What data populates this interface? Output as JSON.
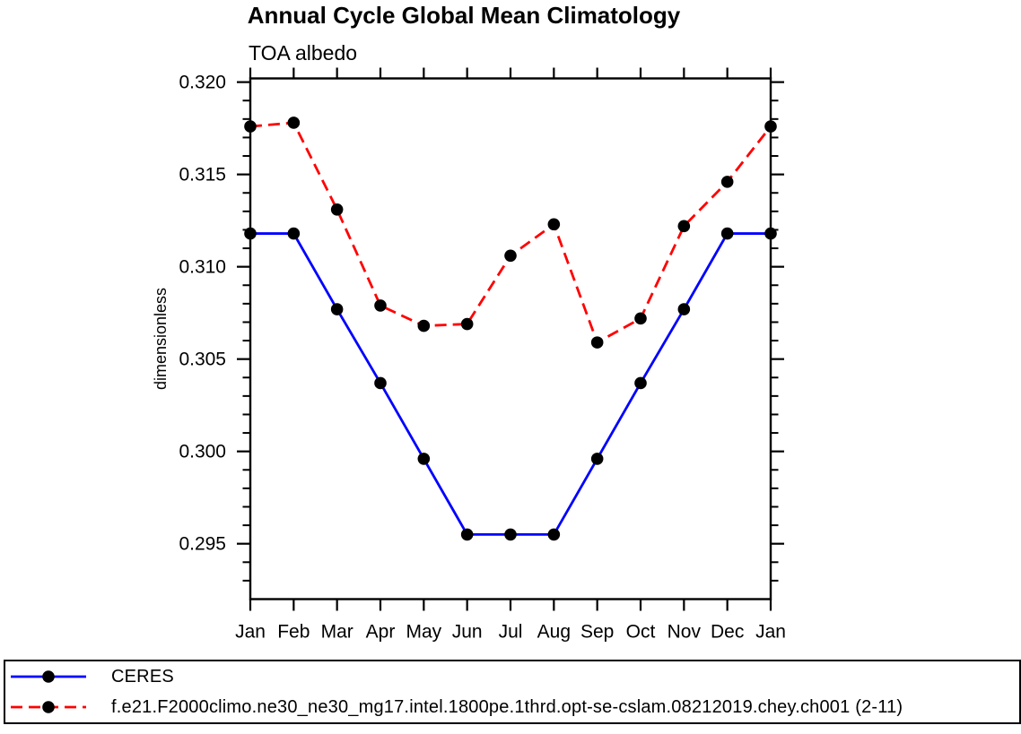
{
  "chart_data": {
    "type": "line",
    "title": "Annual Cycle Global Mean Climatology",
    "subtitle": "TOA albedo",
    "xlabel": "",
    "ylabel": "dimensionless",
    "categories": [
      "Jan",
      "Feb",
      "Mar",
      "Apr",
      "May",
      "Jun",
      "Jul",
      "Aug",
      "Sep",
      "Oct",
      "Nov",
      "Dec",
      "Jan"
    ],
    "series": [
      {
        "name": "CERES",
        "color": "#0000ff",
        "line_style": "solid",
        "marker": "filled-circle",
        "marker_color": "#000000",
        "values": [
          0.3118,
          0.3118,
          0.3077,
          0.3037,
          0.2996,
          0.2955,
          0.2955,
          0.2955,
          0.2996,
          0.3037,
          0.3077,
          0.3118,
          0.3118
        ]
      },
      {
        "name": "f.e21.F2000climo.ne30_ne30_mg17.intel.1800pe.1thrd.opt-se-cslam.08212019.chey.ch001 (2-11)",
        "color": "#ff0000",
        "line_style": "dashed",
        "marker": "filled-circle",
        "marker_color": "#000000",
        "values": [
          0.3176,
          0.3178,
          0.3131,
          0.3079,
          0.3068,
          0.3069,
          0.3106,
          0.3123,
          0.3059,
          0.3072,
          0.3122,
          0.3146,
          0.3176
        ]
      }
    ],
    "ylim": [
      0.292,
      0.3202
    ],
    "y_major_ticks": [
      0.295,
      0.3,
      0.305,
      0.31,
      0.315,
      0.32
    ],
    "y_minor_step": 0.001,
    "tick_style": "outward-all-sides",
    "grid": false,
    "legend_position": "bottom-box"
  },
  "colors": {
    "axis": "#000000",
    "background": "#ffffff",
    "ceres_line": "#0000ff",
    "model_line": "#ff0000",
    "marker": "#000000"
  }
}
